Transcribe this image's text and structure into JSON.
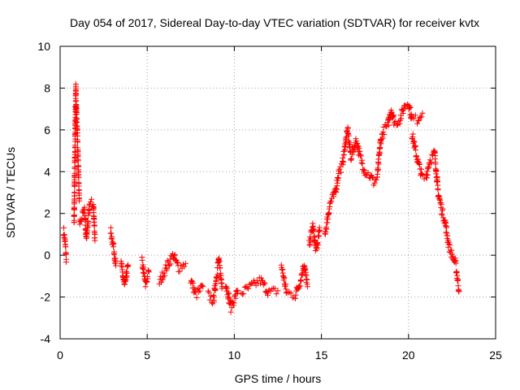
{
  "chart_data": {
    "type": "scatter",
    "title": "Day 054 of 2017, Sidereal Day-to-day VTEC variation (SDTVAR) for receiver kvtx",
    "xlabel": "GPS time / hours",
    "ylabel": "SDTVAR / TECUs",
    "xlim": [
      0,
      25
    ],
    "ylim": [
      -4,
      10
    ],
    "xticks": [
      0,
      5,
      10,
      15,
      20,
      25
    ],
    "yticks": [
      -4,
      -2,
      0,
      2,
      4,
      6,
      8,
      10
    ],
    "grid": true,
    "marker": "+",
    "color": "#ff0000",
    "series": [
      {
        "name": "SDTVAR",
        "segments": [
          [
            [
              0.2,
              1.2
            ],
            [
              0.3,
              0.5
            ],
            [
              0.35,
              -0.2
            ]
          ],
          [
            [
              0.8,
              1.5
            ],
            [
              0.9,
              8.0
            ],
            [
              0.95,
              6.5
            ],
            [
              1.0,
              5.5
            ],
            [
              1.05,
              4.0
            ],
            [
              1.1,
              2.6
            ]
          ],
          [
            [
              1.1,
              1.5
            ],
            [
              1.4,
              2.1
            ],
            [
              1.5,
              0.8
            ],
            [
              1.7,
              2.4
            ],
            [
              1.9,
              2.6
            ],
            [
              2.0,
              0.7
            ]
          ],
          [
            [
              2.9,
              1.2
            ],
            [
              3.1,
              0.2
            ],
            [
              3.2,
              -0.5
            ]
          ],
          [
            [
              3.5,
              -0.4
            ],
            [
              3.7,
              -1.5
            ],
            [
              3.9,
              -0.5
            ]
          ],
          [
            [
              4.7,
              -0.3
            ],
            [
              4.9,
              -1.4
            ],
            [
              5.1,
              -0.8
            ]
          ],
          [
            [
              5.7,
              -1.3
            ],
            [
              6.2,
              -0.4
            ],
            [
              6.5,
              0.0
            ],
            [
              6.8,
              -0.6
            ],
            [
              7.2,
              -0.4
            ]
          ],
          [
            [
              7.5,
              -1.2
            ],
            [
              7.8,
              -1.9
            ],
            [
              8.2,
              -1.5
            ]
          ],
          [
            [
              8.5,
              -1.9
            ],
            [
              8.8,
              -2.2
            ],
            [
              9.1,
              -0.2
            ],
            [
              9.3,
              -1.5
            ]
          ],
          [
            [
              9.5,
              -1.3
            ],
            [
              9.8,
              -2.5
            ],
            [
              10.2,
              -1.7
            ]
          ],
          [
            [
              10.4,
              -1.8
            ],
            [
              10.8,
              -1.6
            ],
            [
              11.5,
              -1.2
            ],
            [
              12.0,
              -1.8
            ],
            [
              12.5,
              -1.7
            ]
          ],
          [
            [
              12.7,
              -0.5
            ],
            [
              13.0,
              -1.8
            ],
            [
              13.5,
              -1.9
            ],
            [
              13.8,
              -1.2
            ],
            [
              14.0,
              -0.4
            ],
            [
              14.2,
              -1.5
            ]
          ],
          [
            [
              14.3,
              0.5
            ],
            [
              14.5,
              1.4
            ],
            [
              14.7,
              0.2
            ],
            [
              14.9,
              1.2
            ]
          ],
          [
            [
              15.2,
              1.0
            ],
            [
              15.5,
              2.5
            ],
            [
              15.8,
              3.0
            ],
            [
              16.0,
              4.0
            ],
            [
              16.2,
              4.3
            ],
            [
              16.4,
              5.5
            ],
            [
              16.5,
              6.0
            ],
            [
              16.7,
              4.7
            ],
            [
              17.0,
              5.5
            ],
            [
              17.2,
              4.8
            ],
            [
              17.5,
              4.0
            ],
            [
              17.8,
              3.8
            ],
            [
              18.0,
              3.5
            ],
            [
              18.2,
              3.7
            ],
            [
              18.4,
              5.5
            ],
            [
              18.6,
              6.0
            ],
            [
              18.8,
              6.2
            ],
            [
              19.0,
              7.0
            ],
            [
              19.2,
              6.3
            ],
            [
              19.5,
              6.5
            ],
            [
              19.8,
              7.2
            ],
            [
              20.0,
              7.3
            ],
            [
              20.2,
              6.5
            ],
            [
              20.5,
              6.5
            ],
            [
              20.8,
              6.8
            ]
          ],
          [
            [
              20.2,
              5.8
            ],
            [
              20.5,
              4.6
            ],
            [
              20.8,
              3.7
            ],
            [
              21.0,
              3.7
            ],
            [
              21.2,
              4.5
            ],
            [
              21.5,
              4.9
            ],
            [
              21.7,
              3.0
            ],
            [
              21.9,
              2.2
            ],
            [
              22.1,
              1.6
            ],
            [
              22.3,
              0.5
            ],
            [
              22.5,
              0.0
            ],
            [
              22.7,
              -0.4
            ],
            [
              22.9,
              -1.7
            ]
          ]
        ]
      }
    ]
  }
}
